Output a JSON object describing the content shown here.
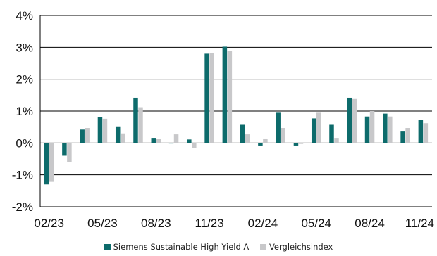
{
  "colors": {
    "fund": "#0d6b6b",
    "index": "#c8c8ca",
    "grid": "#000000"
  },
  "chart_data": {
    "type": "bar",
    "title": "",
    "xlabel": "",
    "ylabel": "",
    "ylim": [
      -2,
      4
    ],
    "grid": true,
    "legend": "bottom",
    "y_ticks": [
      "-2%",
      "-1%",
      "0%",
      "1%",
      "2%",
      "3%",
      "4%"
    ],
    "x_tick_labels": [
      "02/23",
      "05/23",
      "08/23",
      "11/23",
      "02/24",
      "05/24",
      "08/24",
      "11/24"
    ],
    "categories": [
      "02/23",
      "03/23",
      "04/23",
      "05/23",
      "06/23",
      "07/23",
      "08/23",
      "09/23",
      "10/23",
      "11/23",
      "12/23",
      "01/24",
      "02/24",
      "03/24",
      "04/24",
      "05/24",
      "06/24",
      "07/24",
      "08/24",
      "09/24",
      "10/24",
      "11/24"
    ],
    "series": [
      {
        "name": "Siemens Sustainable High Yield A",
        "values": [
          -1.3,
          -0.4,
          0.42,
          0.82,
          0.52,
          1.42,
          0.16,
          0.0,
          0.11,
          2.8,
          3.02,
          0.57,
          -0.08,
          0.97,
          -0.08,
          0.77,
          0.57,
          1.42,
          0.83,
          0.92,
          0.38,
          0.73
        ]
      },
      {
        "name": "Vergleichsindex",
        "values": [
          -1.22,
          -0.6,
          0.47,
          0.76,
          0.3,
          1.12,
          0.12,
          0.27,
          -0.15,
          2.82,
          2.88,
          0.27,
          0.14,
          0.47,
          -0.03,
          0.97,
          0.16,
          1.38,
          1.0,
          0.83,
          0.47,
          0.62
        ]
      }
    ]
  }
}
